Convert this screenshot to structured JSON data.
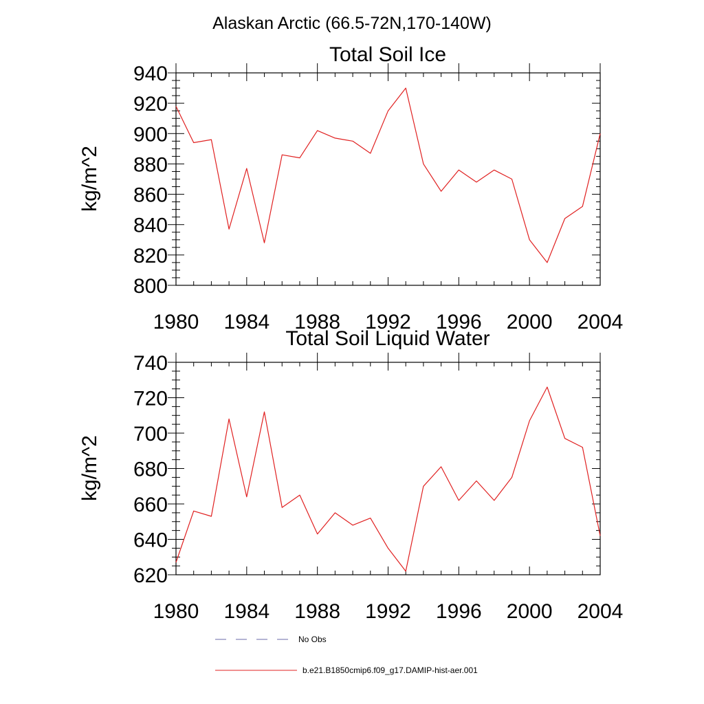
{
  "figure_title": "Alaskan Arctic (66.5-72N,170-140W)",
  "legend": [
    {
      "label": "No Obs",
      "color": "#6a6aa8",
      "dash": true
    },
    {
      "label": "b.e21.B1850cmip6.f09_g17.DAMIP-hist-aer.001",
      "color": "#e02020",
      "dash": false
    }
  ],
  "chart_data": [
    {
      "type": "line",
      "title": "Total Soil Ice",
      "xlabel": "",
      "ylabel": "kg/m^2",
      "xlim": [
        1980,
        2004
      ],
      "ylim": [
        800,
        940
      ],
      "xticks": [
        1980,
        1984,
        1988,
        1992,
        1996,
        2000,
        2004
      ],
      "yticks": [
        800,
        820,
        840,
        860,
        880,
        900,
        920,
        940
      ],
      "grid": false,
      "x": [
        1980,
        1981,
        1982,
        1983,
        1984,
        1985,
        1986,
        1987,
        1988,
        1989,
        1990,
        1991,
        1992,
        1993,
        1994,
        1995,
        1996,
        1997,
        1998,
        1999,
        2000,
        2001,
        2002,
        2003,
        2004
      ],
      "series": [
        {
          "name": "b.e21.B1850cmip6.f09_g17.DAMIP-hist-aer.001",
          "color": "#e02020",
          "values": [
            918,
            894,
            896,
            837,
            877,
            828,
            886,
            884,
            902,
            897,
            895,
            887,
            915,
            930,
            880,
            862,
            876,
            868,
            876,
            870,
            830,
            815,
            844,
            852,
            900
          ]
        }
      ]
    },
    {
      "type": "line",
      "title": "Total Soil Liquid Water",
      "xlabel": "",
      "ylabel": "kg/m^2",
      "xlim": [
        1980,
        2004
      ],
      "ylim": [
        620,
        740
      ],
      "xticks": [
        1980,
        1984,
        1988,
        1992,
        1996,
        2000,
        2004
      ],
      "yticks": [
        620,
        640,
        660,
        680,
        700,
        720,
        740
      ],
      "grid": false,
      "x": [
        1980,
        1981,
        1982,
        1983,
        1984,
        1985,
        1986,
        1987,
        1988,
        1989,
        1990,
        1991,
        1992,
        1993,
        1994,
        1995,
        1996,
        1997,
        1998,
        1999,
        2000,
        2001,
        2002,
        2003,
        2004
      ],
      "series": [
        {
          "name": "b.e21.B1850cmip6.f09_g17.DAMIP-hist-aer.001",
          "color": "#e02020",
          "values": [
            627,
            656,
            653,
            708,
            664,
            712,
            658,
            665,
            643,
            655,
            648,
            652,
            635,
            622,
            670,
            681,
            662,
            673,
            662,
            675,
            707,
            726,
            697,
            692,
            642
          ]
        }
      ]
    }
  ]
}
